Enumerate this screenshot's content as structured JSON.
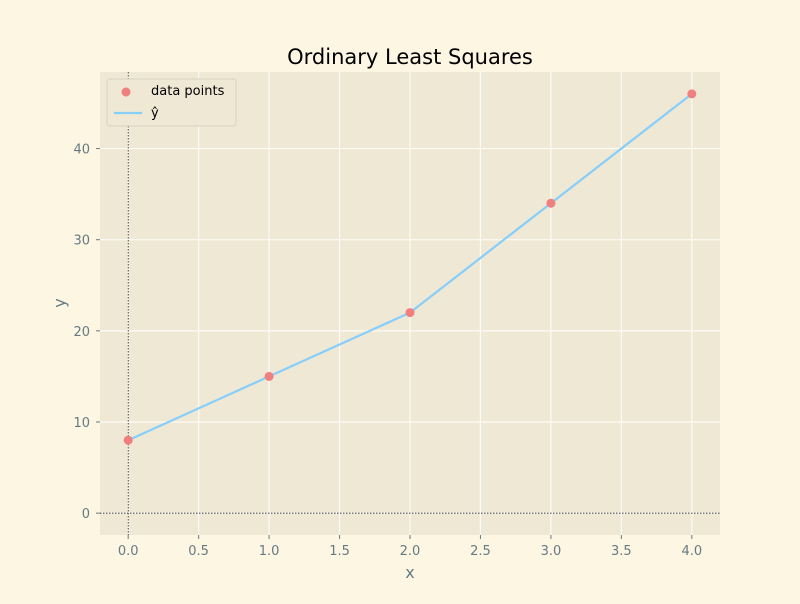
{
  "chart_data": {
    "type": "line",
    "title": "Ordinary Least Squares",
    "xlabel": "x",
    "ylabel": "y",
    "xlim": [
      -0.2,
      4.2
    ],
    "ylim": [
      -2.4,
      48.4
    ],
    "x_ticks": [
      0.0,
      0.5,
      1.0,
      1.5,
      2.0,
      2.5,
      3.0,
      3.5,
      4.0
    ],
    "x_tick_labels": [
      "0.0",
      "0.5",
      "1.0",
      "1.5",
      "2.0",
      "2.5",
      "3.0",
      "3.5",
      "4.0"
    ],
    "y_ticks": [
      0,
      10,
      20,
      30,
      40
    ],
    "y_tick_labels": [
      "0",
      "10",
      "20",
      "30",
      "40"
    ],
    "grid": true,
    "reference_lines": {
      "x": 0,
      "y": 0,
      "style": "dotted"
    },
    "legend": {
      "position": "top-left",
      "entries": [
        "data points",
        "ŷ"
      ]
    },
    "series": [
      {
        "name": "data points",
        "kind": "scatter",
        "color": "#f08080",
        "x": [
          0,
          1,
          2,
          3,
          4
        ],
        "y": [
          8,
          15,
          22,
          34,
          46
        ]
      },
      {
        "name": "ŷ",
        "kind": "line",
        "color": "#87cefa",
        "x": [
          0,
          1,
          2,
          3,
          4
        ],
        "y": [
          8,
          15,
          22,
          34,
          46
        ]
      }
    ],
    "colors": {
      "figure_bg": "#fdf6e3",
      "axes_bg": "#eee8d5",
      "grid": "#fdfbf5",
      "tick_text": "#657b83",
      "title_text": "#000000"
    }
  }
}
